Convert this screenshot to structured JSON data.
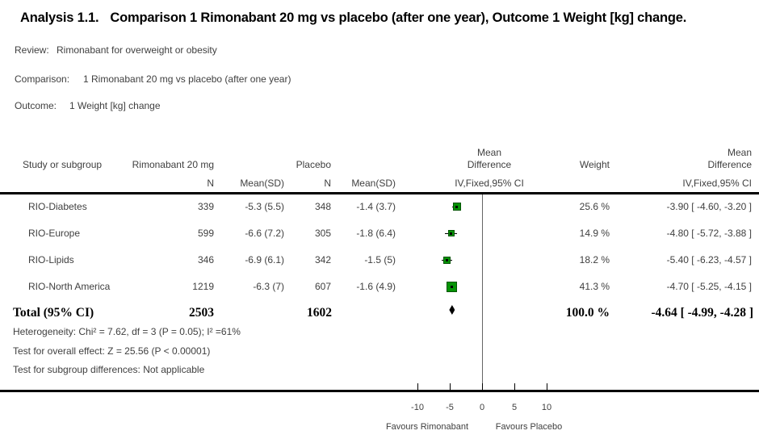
{
  "title": {
    "prefix": "Analysis 1.1.",
    "text": "Comparison 1 Rimonabant 20 mg vs placebo (after one year), Outcome 1 Weight [kg] change."
  },
  "meta": {
    "review_label": "Review:",
    "review_value": "Rimonabant for overweight or obesity",
    "comparison_label": "Comparison:",
    "comparison_value": "1 Rimonabant 20 mg vs placebo (after one year)",
    "outcome_label": "Outcome:",
    "outcome_value": "1 Weight [kg] change"
  },
  "headers": {
    "study": "Study or subgroup",
    "group1": "Rimonabant 20 mg",
    "group2": "Placebo",
    "n": "N",
    "mean_sd": "Mean(SD)",
    "md_line1": "Mean",
    "md_line2": "Difference",
    "method": "IV,Fixed,95% CI",
    "weight": "Weight"
  },
  "rows": [
    {
      "study": "RIO-Diabetes",
      "n1": "339",
      "mean1": "-5.3 (5.5)",
      "n2": "348",
      "mean2": "-1.4 (3.7)",
      "weight": "25.6 %",
      "md_text": "-3.90 [ -4.60, -3.20 ]"
    },
    {
      "study": "RIO-Europe",
      "n1": "599",
      "mean1": "-6.6 (7.2)",
      "n2": "305",
      "mean2": "-1.8 (6.4)",
      "weight": "14.9 %",
      "md_text": "-4.80 [ -5.72, -3.88 ]"
    },
    {
      "study": "RIO-Lipids",
      "n1": "346",
      "mean1": "-6.9 (6.1)",
      "n2": "342",
      "mean2": "-1.5 (5)",
      "weight": "18.2 %",
      "md_text": "-5.40 [ -6.23, -4.57 ]"
    },
    {
      "study": "RIO-North America",
      "n1": "1219",
      "mean1": "-6.3 (7)",
      "n2": "607",
      "mean2": "-1.6 (4.9)",
      "weight": "41.3 %",
      "md_text": "-4.70 [ -5.25, -4.15 ]"
    }
  ],
  "total": {
    "label": "Total (95% CI)",
    "n1": "2503",
    "n2": "1602",
    "weight": "100.0 %",
    "md_text": "-4.64 [ -4.99, -4.28 ]"
  },
  "stats": [
    "Heterogeneity: Chi² = 7.62, df = 3 (P = 0.05); I² =61%",
    "Test for overall effect: Z = 25.56 (P < 0.00001)",
    "Test for subgroup differences: Not applicable"
  ],
  "chart_data": {
    "type": "forest",
    "measure": "Mean Difference, IV, Fixed, 95% CI",
    "studies": [
      {
        "name": "RIO-Diabetes",
        "md": -3.9,
        "ci": [
          -4.6,
          -3.2
        ],
        "weight_pct": 25.6
      },
      {
        "name": "RIO-Europe",
        "md": -4.8,
        "ci": [
          -5.72,
          -3.88
        ],
        "weight_pct": 14.9
      },
      {
        "name": "RIO-Lipids",
        "md": -5.4,
        "ci": [
          -6.23,
          -4.57
        ],
        "weight_pct": 18.2
      },
      {
        "name": "RIO-North America",
        "md": -4.7,
        "ci": [
          -5.25,
          -4.15
        ],
        "weight_pct": 41.3
      }
    ],
    "total": {
      "md": -4.64,
      "ci": [
        -4.99,
        -4.28
      ],
      "weight_pct": 100.0
    },
    "x_axis": {
      "ticks": [
        -10,
        -5,
        0,
        5,
        10
      ],
      "favours_left": "Favours Rimonabant",
      "favours_right": "Favours Placebo"
    },
    "marker_color": "#059305",
    "marker_border": "#025402",
    "line_color": "#000000",
    "zero_line_color": "#666666"
  }
}
